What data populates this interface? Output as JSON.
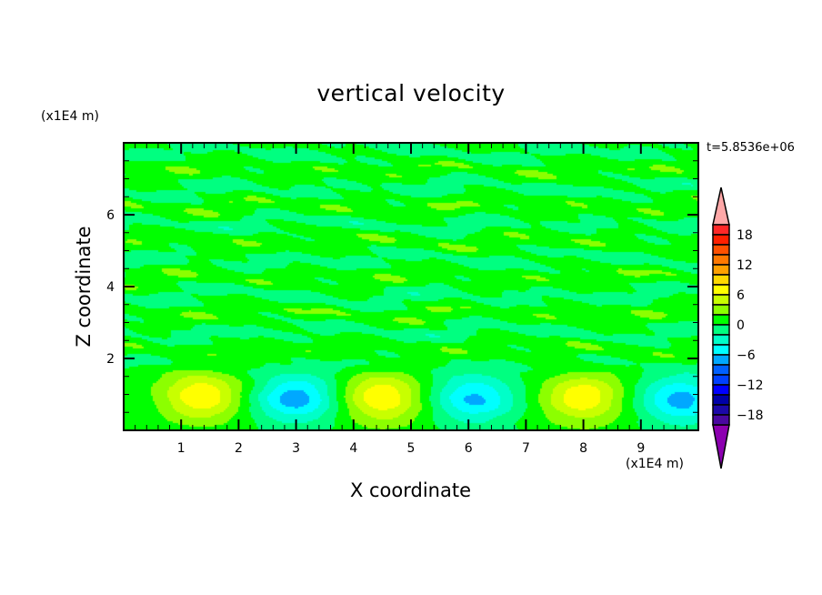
{
  "chart_data": {
    "type": "heatmap",
    "subtype": "filled-contour",
    "title": "vertical velocity",
    "xlabel": "X coordinate",
    "ylabel": "Z coordinate",
    "x_unit_label": "(x1E4 m)",
    "y_unit_label": "(x1E4 m)",
    "time_label": "t=5.8536e+06",
    "xlim": [
      0,
      10
    ],
    "ylim": [
      0,
      8
    ],
    "x_ticks": [
      "1",
      "2",
      "3",
      "4",
      "5",
      "6",
      "7",
      "8",
      "9"
    ],
    "y_ticks": [
      "2",
      "4",
      "6"
    ],
    "contour_levels": [
      -20,
      -18,
      -16,
      -14,
      -12,
      -10,
      -8,
      -6,
      -4,
      -2,
      0,
      2,
      4,
      6,
      8,
      10,
      12,
      14,
      16,
      18,
      20
    ],
    "colorbar": {
      "labels": [
        "18",
        "12",
        "6",
        "0",
        "-6",
        "-12",
        "-18"
      ],
      "label_values": [
        18,
        12,
        6,
        0,
        -6,
        -12,
        -18
      ],
      "colors_low_to_high": [
        "#4a08a0",
        "#1c08a8",
        "#0000a8",
        "#0000ff",
        "#0040ff",
        "#0060ff",
        "#00a8ff",
        "#00ffff",
        "#00ffc8",
        "#00ff80",
        "#00ff00",
        "#8cff00",
        "#c8ff00",
        "#ffff00",
        "#ffd800",
        "#ffa000",
        "#ff7800",
        "#ff5000",
        "#ff2000",
        "#ff2828"
      ],
      "under_color": "#8c00b0",
      "over_color": "#ffa8a8",
      "extend": "both"
    },
    "features": {
      "lower_cells": [
        {
          "x": 1.35,
          "z": 0.95,
          "peak": 7.5
        },
        {
          "x": 3.0,
          "z": 0.9,
          "peak": -7.5
        },
        {
          "x": 4.5,
          "z": 0.9,
          "peak": 7.5
        },
        {
          "x": 6.1,
          "z": 0.9,
          "peak": -6.8
        },
        {
          "x": 8.0,
          "z": 0.9,
          "peak": 7.2
        },
        {
          "x": 9.7,
          "z": 0.85,
          "peak": -7.2
        }
      ],
      "upper_layer_range": [
        -2,
        2
      ]
    }
  }
}
